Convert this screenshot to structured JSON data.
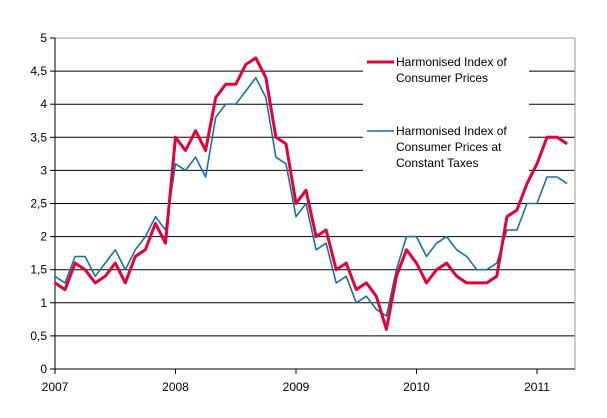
{
  "chart_data": {
    "type": "line",
    "title": "",
    "xlabel": "",
    "ylabel": "",
    "ylim": [
      0,
      5
    ],
    "yticks": [
      "0",
      "0,5",
      "1",
      "1,5",
      "2",
      "2,5",
      "3",
      "3,5",
      "4",
      "4,5",
      "5"
    ],
    "xticks": [
      "2007",
      "2008",
      "2009",
      "2010",
      "2011"
    ],
    "x_start": "2007-01",
    "x_frequency": "monthly",
    "grid": true,
    "legend_position": "top-right",
    "series": [
      {
        "name": "Harmonised Index of Consumer Prices",
        "color": "#e4003a",
        "values": [
          1.3,
          1.2,
          1.6,
          1.5,
          1.3,
          1.4,
          1.6,
          1.3,
          1.7,
          1.8,
          2.2,
          1.9,
          3.5,
          3.3,
          3.6,
          3.3,
          4.1,
          4.3,
          4.3,
          4.6,
          4.7,
          4.4,
          3.5,
          3.4,
          2.5,
          2.7,
          2.0,
          2.1,
          1.5,
          1.6,
          1.2,
          1.3,
          1.1,
          0.6,
          1.4,
          1.8,
          1.6,
          1.3,
          1.5,
          1.6,
          1.4,
          1.3,
          1.3,
          1.3,
          1.4,
          2.3,
          2.4,
          2.8,
          3.1,
          3.5,
          3.5,
          3.4
        ]
      },
      {
        "name": "Harmonised Index of Consumer Prices at Constant Taxes",
        "color": "#1a6fa8",
        "values": [
          1.4,
          1.3,
          1.7,
          1.7,
          1.4,
          1.6,
          1.8,
          1.5,
          1.8,
          2.0,
          2.3,
          2.1,
          3.1,
          3.0,
          3.2,
          2.9,
          3.8,
          4.0,
          4.0,
          4.2,
          4.4,
          4.1,
          3.2,
          3.1,
          2.3,
          2.5,
          1.8,
          1.9,
          1.3,
          1.4,
          1.0,
          1.1,
          0.9,
          0.8,
          1.5,
          2.0,
          2.0,
          1.7,
          1.9,
          2.0,
          1.8,
          1.7,
          1.5,
          1.5,
          1.6,
          2.1,
          2.1,
          2.5,
          2.5,
          2.9,
          2.9,
          2.8
        ]
      }
    ]
  },
  "legend": {
    "items": [
      {
        "lines": [
          "Harmonised Index of",
          "Consumer Prices"
        ]
      },
      {
        "lines": [
          "Harmonised Index of",
          "Consumer Prices at",
          "Constant Taxes"
        ]
      }
    ]
  }
}
